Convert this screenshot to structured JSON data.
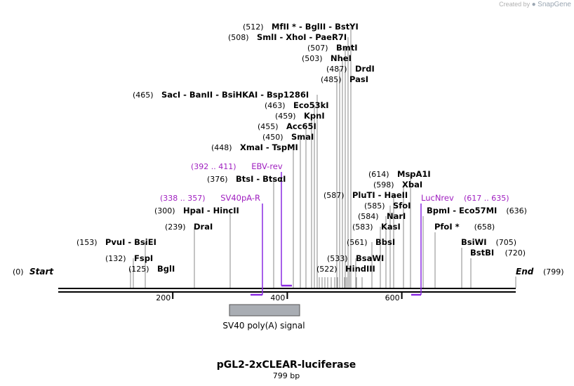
{
  "credit": {
    "prefix": "Created by",
    "brand": "SnapGene"
  },
  "plasmid": {
    "name": "pGL2-2xCLEAR-luciferase",
    "length_label": "799 bp"
  },
  "sequence": {
    "start_label": "Start",
    "start_pos": "(0)",
    "end_label": "End",
    "end_pos": "(799)",
    "length": 799
  },
  "ticks": [
    {
      "label": "200",
      "pos": 200
    },
    {
      "label": "400",
      "pos": 400
    },
    {
      "label": "600",
      "pos": 600
    }
  ],
  "features": [
    {
      "name": "SV40 poly(A) signal",
      "start": 300,
      "end": 421
    }
  ],
  "primers": [
    {
      "range": "(392 .. 411)",
      "name": "EBV-rev",
      "start": 392,
      "end": 411,
      "dir": "rev"
    },
    {
      "range": "(338 .. 357)",
      "name": "SV40pA-R",
      "start": 338,
      "end": 357,
      "dir": "rev"
    },
    {
      "name": "LucNrev",
      "range": "(617 .. 635)",
      "start": 617,
      "end": 635,
      "dir": "rev"
    }
  ],
  "sites": [
    {
      "pos": "(512)",
      "names": "MfII * - BglII - BstYI",
      "site": 512
    },
    {
      "pos": "(508)",
      "names": "SmlI - XhoI - PaeR7I",
      "site": 508
    },
    {
      "pos": "(507)",
      "names": "BmtI",
      "site": 507
    },
    {
      "pos": "(503)",
      "names": "NheI",
      "site": 503
    },
    {
      "pos": "(487)",
      "names": "DrdI",
      "site": 487
    },
    {
      "pos": "(485)",
      "names": "PasI",
      "site": 485
    },
    {
      "pos": "(465)",
      "names": "SacI - BanII - BsiHKAI - Bsp1286I",
      "site": 465
    },
    {
      "pos": "(463)",
      "names": "Eco53kI",
      "site": 463
    },
    {
      "pos": "(459)",
      "names": "KpnI",
      "site": 459
    },
    {
      "pos": "(455)",
      "names": "Acc65I",
      "site": 455
    },
    {
      "pos": "(450)",
      "names": "SmaI",
      "site": 450
    },
    {
      "pos": "(448)",
      "names": "XmaI - TspMI",
      "site": 448
    },
    {
      "pos": "(376)",
      "names": "BtsI - BtsαI",
      "site": 376
    },
    {
      "pos": "(300)",
      "names": "HpaI - HincII",
      "site": 300
    },
    {
      "pos": "(239)",
      "names": "DraI",
      "site": 239
    },
    {
      "pos": "(153)",
      "names": "PvuI - BsiEI",
      "site": 153
    },
    {
      "pos": "(132)",
      "names": "FspI",
      "site": 132
    },
    {
      "pos": "(125)",
      "names": "BglI",
      "site": 125
    },
    {
      "pos": "(614)",
      "names": "MspA1I",
      "site": 614
    },
    {
      "pos": "(598)",
      "names": "XbaI",
      "site": 598
    },
    {
      "pos": "(587)",
      "names": "PluTI - HaeII",
      "site": 587
    },
    {
      "pos": "(585)",
      "names": "SfoI",
      "site": 585
    },
    {
      "pos": "(584)",
      "names": "NarI",
      "site": 584
    },
    {
      "pos": "(583)",
      "names": "KasI",
      "site": 583
    },
    {
      "pos": "(561)",
      "names": "BbsI",
      "site": 561
    },
    {
      "pos": "(533)",
      "names": "BsaWI",
      "site": 533
    },
    {
      "pos": "(522)",
      "names": "HindIII",
      "site": 522
    },
    {
      "names": "BpmI - Eco57MI",
      "pos": "(636)",
      "site": 636
    },
    {
      "names": "PfoI *",
      "pos": "(658)",
      "site": 658
    },
    {
      "names": "BsiWI",
      "pos": "(705)",
      "site": 705
    },
    {
      "names": "BstBI",
      "pos": "(720)",
      "site": 720
    }
  ]
}
